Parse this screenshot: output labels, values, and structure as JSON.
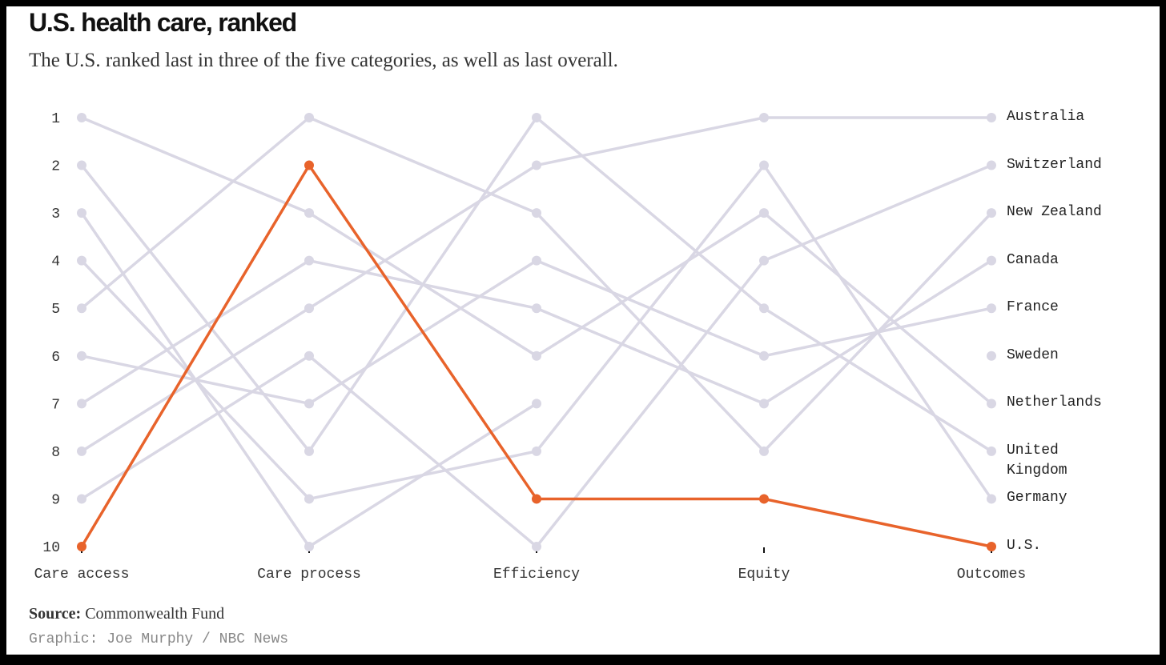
{
  "chart_data": {
    "type": "slope",
    "title": "U.S. health care, ranked",
    "subtitle": "The U.S. ranked last in three of the five categories, as well as last overall.",
    "source_label": "Source:",
    "source": "Commonwealth Fund",
    "credit": "Graphic: Joe Murphy / NBC News",
    "categories": [
      "Care access",
      "Care process",
      "Efficiency",
      "Equity",
      "Outcomes"
    ],
    "ylim": [
      1,
      10
    ],
    "yticks": [
      1,
      2,
      3,
      4,
      5,
      6,
      7,
      8,
      9,
      10
    ],
    "series": [
      {
        "name": "Australia",
        "color": "#d9d7e4",
        "values": [
          8,
          5,
          2,
          1,
          1
        ]
      },
      {
        "name": "Switzerland",
        "color": "#d9d7e4",
        "values": [
          9,
          6,
          10,
          4,
          2
        ]
      },
      {
        "name": "New Zealand",
        "color": "#d9d7e4",
        "values": [
          5,
          1,
          3,
          8,
          3
        ]
      },
      {
        "name": "Canada",
        "color": "#d9d7e4",
        "values": [
          7,
          4,
          5,
          7,
          4
        ]
      },
      {
        "name": "France",
        "color": "#d9d7e4",
        "values": [
          6,
          7,
          4,
          6,
          5
        ]
      },
      {
        "name": "Sweden",
        "color": "#d9d7e4",
        "values": [
          3,
          10,
          7,
          null,
          6
        ]
      },
      {
        "name": "Netherlands",
        "color": "#d9d7e4",
        "values": [
          1,
          3,
          6,
          3,
          7
        ]
      },
      {
        "name": "United Kingdom",
        "color": "#d9d7e4",
        "values": [
          2,
          8,
          1,
          5,
          8
        ]
      },
      {
        "name": "Germany",
        "color": "#d9d7e4",
        "values": [
          4,
          9,
          8,
          2,
          9
        ]
      },
      {
        "name": "U.S.",
        "color": "#e8632b",
        "values": [
          10,
          2,
          9,
          9,
          10
        ]
      }
    ]
  }
}
